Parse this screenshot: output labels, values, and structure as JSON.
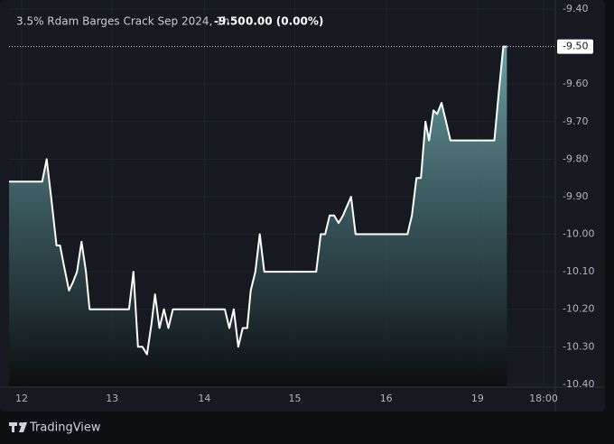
{
  "chart_data": {
    "type": "area",
    "title": "3.5% Rdam Barges Crack Sep 2024, 1h",
    "last_value": {
      "value": -9.5,
      "label": "-9.50"
    },
    "change_label": "0.00 (0.00%)",
    "brand": "TradingView",
    "color": "#ffffff",
    "x": [
      0,
      3.66,
      4.16,
      4.65,
      5.25,
      5.64,
      6.04,
      6.63,
      7.03,
      7.52,
      8.02,
      8.51,
      8.91,
      13.27,
      13.76,
      14.26,
      14.75,
      15.25,
      15.74,
      16.14,
      16.63,
      17.13,
      17.62,
      18.12,
      23.86,
      24.36,
      24.85,
      25.35,
      25.84,
      26.34,
      26.73,
      27.23,
      27.72,
      28.22,
      33.96,
      34.46,
      34.95,
      35.45,
      35.94,
      36.44,
      36.93,
      37.82,
      38.32,
      44.06,
      44.55,
      45.05,
      45.54,
      46.04,
      46.44,
      46.93,
      47.33,
      47.82,
      48.32,
      48.81,
      53.66,
      54.16,
      54.65,
      55.05
    ],
    "values": [
      -9.86,
      -9.86,
      -9.8,
      -9.9,
      -10.03,
      -10.03,
      -10.08,
      -10.15,
      -10.13,
      -10.1,
      -10.02,
      -10.1,
      -10.2,
      -10.2,
      -10.1,
      -10.3,
      -10.3,
      -10.32,
      -10.24,
      -10.16,
      -10.25,
      -10.2,
      -10.25,
      -10.2,
      -10.2,
      -10.25,
      -10.2,
      -10.3,
      -10.25,
      -10.25,
      -10.15,
      -10.1,
      -10.0,
      -10.1,
      -10.1,
      -10.0,
      -10.0,
      -9.95,
      -9.95,
      -9.97,
      -9.95,
      -9.9,
      -10.0,
      -10.0,
      -9.95,
      -9.85,
      -9.85,
      -9.7,
      -9.75,
      -9.67,
      -9.68,
      -9.65,
      -9.7,
      -9.75,
      -9.75,
      -9.62,
      -9.5,
      -9.5
    ],
    "xlim": [
      0,
      60.4
    ],
    "xticks": [
      {
        "value": 1.4,
        "label": "12"
      },
      {
        "value": 11.4,
        "label": "13"
      },
      {
        "value": 21.6,
        "label": "14"
      },
      {
        "value": 31.6,
        "label": "15"
      },
      {
        "value": 41.7,
        "label": "16"
      },
      {
        "value": 51.8,
        "label": "19"
      },
      {
        "value": 59.1,
        "label": "18:00"
      }
    ],
    "ylim": [
      -10.405,
      -9.376
    ],
    "yticks": [
      {
        "value": -9.4,
        "label": "-9.40"
      },
      {
        "value": -9.6,
        "label": "-9.60"
      },
      {
        "value": -9.7,
        "label": "-9.70"
      },
      {
        "value": -9.8,
        "label": "-9.80"
      },
      {
        "value": -9.9,
        "label": "-9.90"
      },
      {
        "value": -10.0,
        "label": "-10.00"
      },
      {
        "value": -10.1,
        "label": "-10.10"
      },
      {
        "value": -10.2,
        "label": "-10.20"
      },
      {
        "value": -10.3,
        "label": "-10.30"
      },
      {
        "value": -10.4,
        "label": "-10.40"
      }
    ],
    "grid": true
  }
}
